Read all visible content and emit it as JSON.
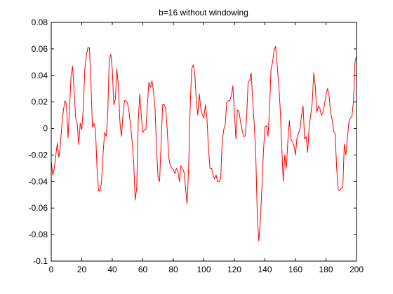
{
  "chart_data": {
    "type": "line",
    "title": "b=16 without windowing",
    "xlabel": "",
    "ylabel": "",
    "xlim": [
      0,
      200
    ],
    "ylim": [
      -0.1,
      0.08
    ],
    "grid": false,
    "legend": "none",
    "colors": {
      "line": "#ff0000",
      "axes": "#000000",
      "background": "#ffffff"
    },
    "x_ticks": [
      0,
      20,
      40,
      60,
      80,
      100,
      120,
      140,
      160,
      180,
      200
    ],
    "x_tick_labels": [
      "0",
      "20",
      "40",
      "60",
      "80",
      "100",
      "120",
      "140",
      "160",
      "180",
      "200"
    ],
    "y_ticks": [
      -0.1,
      -0.08,
      -0.06,
      -0.04,
      -0.02,
      0,
      0.02,
      0.04,
      0.06,
      0.08
    ],
    "y_tick_labels": [
      "-0.1",
      "-0.08",
      "-0.06",
      "-0.04",
      "-0.02",
      "0",
      "0.02",
      "0.04",
      "0.06",
      "0.08"
    ],
    "series": [
      {
        "color": "#ff0000",
        "x": [
          0,
          1,
          2,
          3,
          4,
          5,
          6,
          7,
          8,
          9,
          10,
          11,
          12,
          13,
          14,
          15,
          16,
          17,
          18,
          19,
          20,
          21,
          22,
          23,
          24,
          25,
          26,
          27,
          28,
          29,
          30,
          31,
          32,
          33,
          34,
          35,
          36,
          37,
          38,
          39,
          40,
          41,
          42,
          43,
          44,
          45,
          46,
          47,
          48,
          49,
          50,
          51,
          52,
          53,
          54,
          55,
          56,
          57,
          58,
          59,
          60,
          61,
          62,
          63,
          64,
          65,
          66,
          67,
          68,
          69,
          70,
          71,
          72,
          73,
          74,
          75,
          76,
          77,
          78,
          79,
          80,
          81,
          82,
          83,
          84,
          85,
          86,
          87,
          88,
          89,
          90,
          91,
          92,
          93,
          94,
          95,
          96,
          97,
          98,
          99,
          100,
          101,
          102,
          103,
          104,
          105,
          106,
          107,
          108,
          109,
          110,
          111,
          112,
          113,
          114,
          115,
          116,
          117,
          118,
          119,
          120,
          121,
          122,
          123,
          124,
          125,
          126,
          127,
          128,
          129,
          130,
          131,
          132,
          133,
          134,
          135,
          136,
          137,
          138,
          139,
          140,
          141,
          142,
          143,
          144,
          145,
          146,
          147,
          148,
          149,
          150,
          151,
          152,
          153,
          154,
          155,
          156,
          157,
          158,
          159,
          160,
          161,
          162,
          163,
          164,
          165,
          166,
          167,
          168,
          169,
          170,
          171,
          172,
          173,
          174,
          175,
          176,
          177,
          178,
          179,
          180,
          181,
          182,
          183,
          184,
          185,
          186,
          187,
          188,
          189,
          190,
          191,
          192,
          193,
          194,
          195,
          196,
          197,
          198,
          199,
          200
        ],
        "y": [
          -0.025,
          -0.035,
          -0.03,
          -0.02,
          -0.011,
          -0.022,
          -0.012,
          0.003,
          0.014,
          0.021,
          0.018,
          -0.007,
          0.015,
          0.04,
          0.047,
          0.028,
          0.008,
          0.004,
          -0.012,
          0.004,
          -0.001,
          0.015,
          0.045,
          0.055,
          0.061,
          0.061,
          0.035,
          0.001,
          0.004,
          -0.001,
          -0.03,
          -0.047,
          -0.047,
          -0.04,
          -0.018,
          -0.003,
          -0.006,
          0.01,
          0.052,
          0.056,
          0.045,
          0.018,
          0.022,
          0.045,
          0.032,
          0.005,
          -0.006,
          0.01,
          0.021,
          0.021,
          0.019,
          0.012,
          0.002,
          -0.01,
          -0.025,
          -0.054,
          -0.045,
          0.005,
          0.026,
          0.01,
          -0.003,
          -0.001,
          -0.001,
          0.018,
          0.035,
          0.031,
          0.036,
          0.028,
          0.015,
          -0.015,
          -0.037,
          -0.04,
          -0.01,
          0.018,
          0.018,
          0.015,
          -0.001,
          -0.022,
          -0.028,
          -0.03,
          -0.031,
          -0.034,
          -0.03,
          -0.032,
          -0.04,
          -0.028,
          -0.03,
          -0.033,
          -0.045,
          -0.057,
          -0.03,
          0.015,
          0.045,
          0.048,
          0.042,
          0.022,
          0.01,
          0.026,
          0.015,
          0.01,
          0.008,
          0.018,
          0.008,
          -0.015,
          -0.03,
          -0.03,
          -0.035,
          -0.038,
          -0.035,
          -0.04,
          -0.04,
          -0.038,
          -0.01,
          -0.001,
          0.003,
          0.02,
          0.021,
          0.021,
          0.025,
          0.032,
          0.012,
          -0.008,
          0.014,
          0.013,
          0.005,
          -0.001,
          -0.006,
          -0.006,
          0.008,
          0.035,
          0.036,
          0.042,
          0.021,
          0.003,
          -0.02,
          -0.065,
          -0.085,
          -0.07,
          -0.045,
          -0.018,
          0.001,
          0.002,
          -0.006,
          0.014,
          0.045,
          0.05,
          0.059,
          0.062,
          0.048,
          0.034,
          0.015,
          -0.013,
          -0.04,
          -0.02,
          -0.03,
          -0.01,
          0.006,
          -0.008,
          -0.01,
          -0.013,
          -0.02,
          -0.007,
          -0.004,
          0.0,
          0.01,
          0.017,
          -0.008,
          -0.006,
          -0.018,
          0.002,
          0.01,
          0.02,
          0.042,
          0.032,
          0.012,
          0.017,
          0.015,
          0.01,
          0.012,
          0.018,
          0.025,
          0.03,
          0.025,
          0.012,
          0.007,
          -0.002,
          -0.004,
          -0.03,
          -0.046,
          -0.047,
          -0.045,
          -0.045,
          -0.012,
          -0.02,
          -0.008,
          0.005,
          0.008,
          0.009,
          0.02,
          0.05,
          0.055
        ]
      }
    ]
  }
}
